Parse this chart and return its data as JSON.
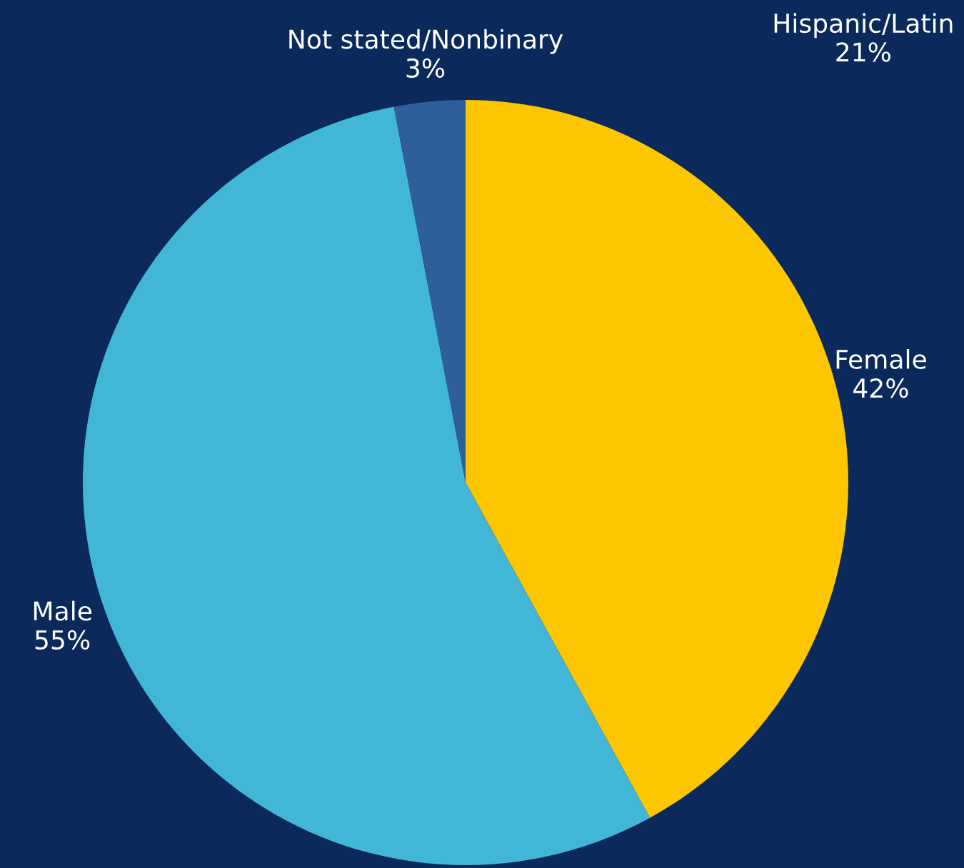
{
  "chart_data": {
    "type": "pie",
    "categories": [
      "Female",
      "Male",
      "Not stated/Nonbinary"
    ],
    "values": [
      42,
      55,
      3
    ],
    "colors": [
      "#fcc600",
      "#41b6d6",
      "#2e5f9a"
    ],
    "value_labels": [
      "42%",
      "55%",
      "3%"
    ],
    "annotations": [
      "Hispanic/Latin\n21%"
    ],
    "legend": false
  }
}
